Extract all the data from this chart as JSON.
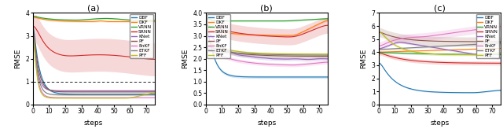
{
  "title_a": "(a)",
  "title_b": "(b)",
  "title_c": "(c)",
  "xlabel": "steps",
  "ylabel": "RMSE",
  "xlim_a": [
    0,
    75
  ],
  "xlim_b": [
    0,
    75
  ],
  "xlim_c": [
    0,
    75
  ],
  "n_steps": 76,
  "legend_labels": [
    "DBF",
    "DKF",
    "VRNN",
    "SRNN",
    "KNet",
    "PF",
    "EnKF",
    "ETKF",
    "PFF"
  ],
  "colors": {
    "DBF": "#1f77b4",
    "DKF": "#ff7f0e",
    "VRNN": "#2ca02c",
    "SRNN": "#d62728",
    "KNet": "#9467bd",
    "PF": "#8c564b",
    "EnKF": "#e377c2",
    "ETKF": "#7f7f7f",
    "PFF": "#bcbd22"
  },
  "panel_a": {
    "ylim": [
      0.0,
      4.0
    ],
    "yticks": [
      0.0,
      1.0,
      2.0,
      3.0,
      4.0
    ],
    "hline": 1.0
  },
  "panel_b": {
    "ylim": [
      0.0,
      4.0
    ],
    "yticks": [
      0.0,
      0.5,
      1.0,
      1.5,
      2.0,
      2.5,
      3.0,
      3.5,
      4.0
    ]
  },
  "panel_c": {
    "ylim": [
      0.0,
      7.0
    ],
    "yticks": [
      0,
      1,
      2,
      3,
      4,
      5,
      6,
      7
    ]
  }
}
